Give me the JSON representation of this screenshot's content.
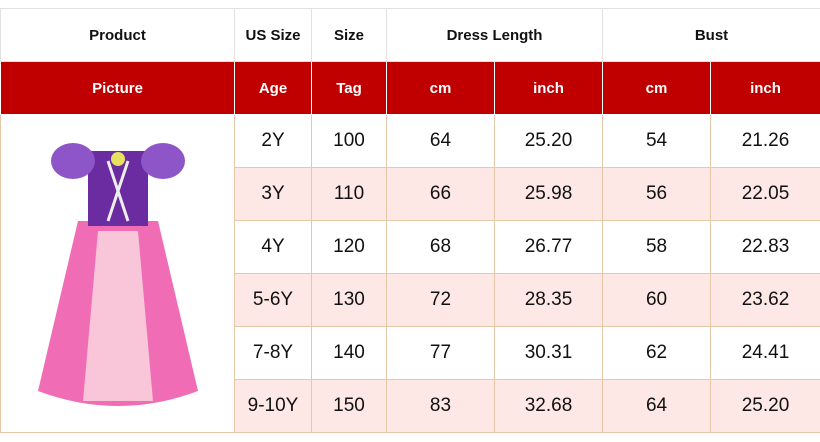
{
  "header": {
    "row1": [
      "Product",
      "US Size",
      "Size",
      "Dress Length",
      "Bust"
    ],
    "row2": [
      "Picture",
      "Age",
      "Tag",
      "cm",
      "inch",
      "cm",
      "inch"
    ]
  },
  "rows": [
    [
      "2Y",
      "100",
      "64",
      "25.20",
      "54",
      "21.26"
    ],
    [
      "3Y",
      "110",
      "66",
      "25.98",
      "56",
      "22.05"
    ],
    [
      "4Y",
      "120",
      "68",
      "26.77",
      "58",
      "22.83"
    ],
    [
      "5-6Y",
      "130",
      "72",
      "28.35",
      "60",
      "23.62"
    ],
    [
      "7-8Y",
      "140",
      "77",
      "30.31",
      "62",
      "24.41"
    ],
    [
      "9-10Y",
      "150",
      "83",
      "32.68",
      "64",
      "25.20"
    ]
  ],
  "colors": {
    "header_red": "#c00000",
    "alt_row": "#fde8e6"
  }
}
